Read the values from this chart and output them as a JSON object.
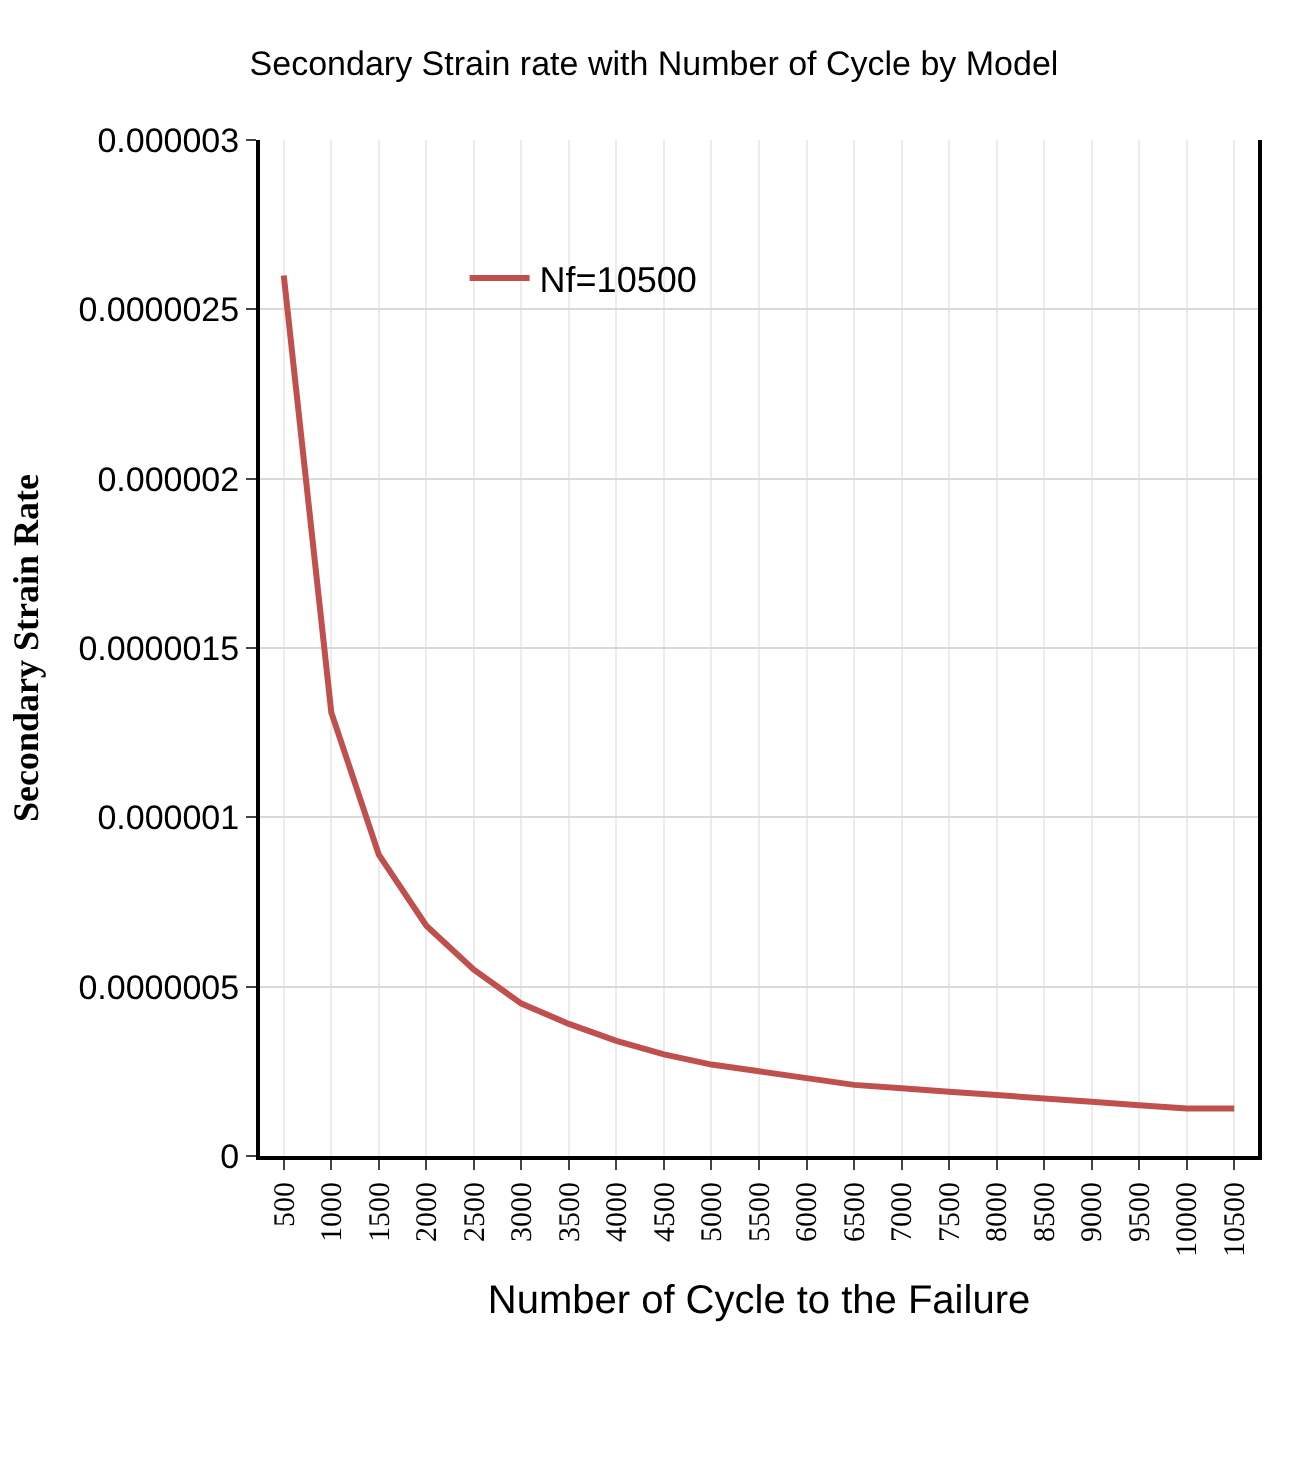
{
  "chart_data": {
    "type": "line",
    "title": "Secondary Strain rate with Number of Cycle by Model",
    "xlabel": "Number of Cycle to the Failure",
    "ylabel": "Secondary Strain Rate",
    "categories": [
      "500",
      "1000",
      "1500",
      "2000",
      "2500",
      "3000",
      "3500",
      "4000",
      "4500",
      "5000",
      "5500",
      "6000",
      "6500",
      "7000",
      "7500",
      "8000",
      "8500",
      "9000",
      "9500",
      "10000",
      "10500"
    ],
    "series": [
      {
        "name": "Nf=10500",
        "color": "#c0504d",
        "values": [
          2.6e-06,
          1.31e-06,
          8.9e-07,
          6.8e-07,
          5.5e-07,
          4.5e-07,
          3.9e-07,
          3.4e-07,
          3e-07,
          2.7e-07,
          2.5e-07,
          2.3e-07,
          2.1e-07,
          2e-07,
          1.9e-07,
          1.8e-07,
          1.7e-07,
          1.6e-07,
          1.5e-07,
          1.4e-07,
          1.4e-07
        ]
      }
    ],
    "ylim": [
      0,
      3e-06
    ],
    "yticks": [
      {
        "value": 0,
        "label": "0"
      },
      {
        "value": 5e-07,
        "label": "0.0000005"
      },
      {
        "value": 1e-06,
        "label": "0.000001"
      },
      {
        "value": 1.5e-06,
        "label": "0.0000015"
      },
      {
        "value": 2e-06,
        "label": "0.000002"
      },
      {
        "value": 2.5e-06,
        "label": "0.0000025"
      },
      {
        "value": 3e-06,
        "label": "0.000003"
      }
    ],
    "grid": true,
    "legend": "top left",
    "marker": "none",
    "line_style": "solid"
  }
}
